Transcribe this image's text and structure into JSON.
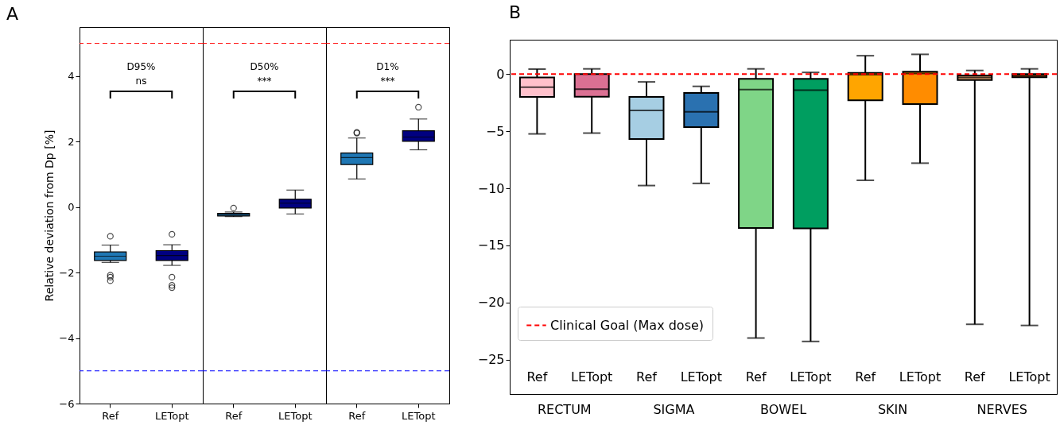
{
  "chart_data": [
    {
      "type": "box",
      "title": "A",
      "categories": [
        "Ref",
        "LETopt"
      ],
      "ylabel": "Relative deviation from Dp [%]",
      "ylim": [
        -6,
        5.5
      ],
      "yticks": [
        -6,
        -4,
        -2,
        0,
        2,
        4
      ],
      "colors": [
        "#1f77b4",
        "#000080"
      ],
      "boxes": [
        {
          "low": -1.69,
          "q1": -1.63,
          "median": -1.5,
          "q3": -1.37,
          "high": -1.16,
          "outliers": [
            -0.89,
            -2.08,
            -2.14,
            -2.25
          ]
        },
        {
          "low": -1.78,
          "q1": -1.63,
          "median": -1.48,
          "q3": -1.33,
          "high": -1.15,
          "outliers": [
            -0.83,
            -2.14,
            -2.39,
            -2.46
          ]
        }
      ],
      "ref_lines": [
        {
          "axis": "y",
          "value": 5,
          "color": "#ff0000",
          "line_style": "dashed"
        },
        {
          "axis": "y",
          "value": -5,
          "color": "#0000ff",
          "line_style": "dashed"
        }
      ],
      "annotations": [
        "D95%",
        "ns"
      ]
    },
    {
      "type": "box",
      "categories": [
        "Ref",
        "LETopt"
      ],
      "ylim": [
        -6,
        5.5
      ],
      "yticks": [
        -6,
        -4,
        -2,
        0,
        2,
        4
      ],
      "tick_labels": "x",
      "colors": [
        "#1f77b4",
        "#000080"
      ],
      "boxes": [
        {
          "low": -0.29,
          "q1": -0.27,
          "median": -0.23,
          "q3": -0.19,
          "high": -0.15,
          "outliers": [
            -0.03
          ]
        },
        {
          "low": -0.21,
          "q1": -0.03,
          "median": 0.12,
          "q3": 0.24,
          "high": 0.52
        }
      ],
      "ref_lines": [
        {
          "axis": "y",
          "value": 5,
          "color": "#ff0000",
          "line_style": "dashed"
        },
        {
          "axis": "y",
          "value": -5,
          "color": "#0000ff",
          "line_style": "dashed"
        }
      ],
      "annotations": [
        "D50%",
        "***"
      ]
    },
    {
      "type": "box",
      "categories": [
        "Ref",
        "LETopt"
      ],
      "ylim": [
        -6,
        5.5
      ],
      "yticks": [
        -6,
        -4,
        -2,
        0,
        2,
        4
      ],
      "tick_labels": "x",
      "colors": [
        "#1f77b4",
        "#000080"
      ],
      "boxes": [
        {
          "low": 0.86,
          "q1": 1.3,
          "median": 1.51,
          "q3": 1.65,
          "high": 2.11,
          "outliers": [
            2.26,
            2.28
          ]
        },
        {
          "low": 1.75,
          "q1": 2.01,
          "median": 2.14,
          "q3": 2.33,
          "high": 2.69,
          "outliers": [
            3.05
          ]
        }
      ],
      "ref_lines": [
        {
          "axis": "y",
          "value": 5,
          "color": "#ff0000",
          "line_style": "dashed"
        },
        {
          "axis": "y",
          "value": -5,
          "color": "#0000ff",
          "line_style": "dashed"
        }
      ],
      "annotations": [
        "D1%",
        "***"
      ]
    },
    {
      "type": "box",
      "title": "B",
      "categories": [
        "Ref",
        "LETopt",
        "Ref",
        "LETopt",
        "Ref",
        "LETopt",
        "Ref",
        "LETopt",
        "Ref",
        "LETopt"
      ],
      "ylim": [
        -28,
        3
      ],
      "yticks": [
        -25,
        -20,
        -15,
        -10,
        -5,
        0
      ],
      "colors": [
        "#ffc0cb",
        "#db7093",
        "#a6cee3",
        "#2a71b0",
        "#7fd587",
        "#009e60",
        "#ffa500",
        "#ff8c00",
        "#e0a070",
        "#d2691e"
      ],
      "boxes": [
        {
          "low": -5.24,
          "q1": -2.01,
          "median": -1.16,
          "q3": -0.31,
          "high": 0.43
        },
        {
          "low": -5.17,
          "q1": -1.99,
          "median": -1.33,
          "q3": 0.0,
          "high": 0.45
        },
        {
          "low": -9.76,
          "q1": -5.69,
          "median": -3.18,
          "q3": -2.01,
          "high": -0.69
        },
        {
          "low": -9.57,
          "q1": -4.64,
          "median": -3.3,
          "q3": -1.65,
          "high": -1.08
        },
        {
          "low": -23.1,
          "q1": -13.47,
          "median": -1.36,
          "q3": -0.43,
          "high": 0.45
        },
        {
          "low": -23.4,
          "q1": -13.5,
          "median": -1.41,
          "q3": -0.43,
          "high": 0.14
        },
        {
          "low": -9.3,
          "q1": -2.3,
          "median": -0.05,
          "q3": 0.1,
          "high": 1.6
        },
        {
          "low": -7.8,
          "q1": -2.63,
          "median": 0.05,
          "q3": 0.2,
          "high": 1.72
        },
        {
          "low": -21.9,
          "q1": -0.53,
          "median": -0.3,
          "q3": -0.12,
          "high": 0.31
        },
        {
          "low": -22.0,
          "q1": -0.29,
          "median": -0.15,
          "q3": 0.0,
          "high": 0.45
        }
      ],
      "ref_lines": [
        {
          "axis": "y",
          "value": 0,
          "label": "Clinical Goal (Max dose)",
          "color": "#ff0000",
          "line_style": "dashed"
        }
      ],
      "legend": "bottom left",
      "annotations": [
        "RECTUM",
        "SIGMA",
        "BOWEL",
        "SKIN",
        "NERVES"
      ]
    }
  ]
}
